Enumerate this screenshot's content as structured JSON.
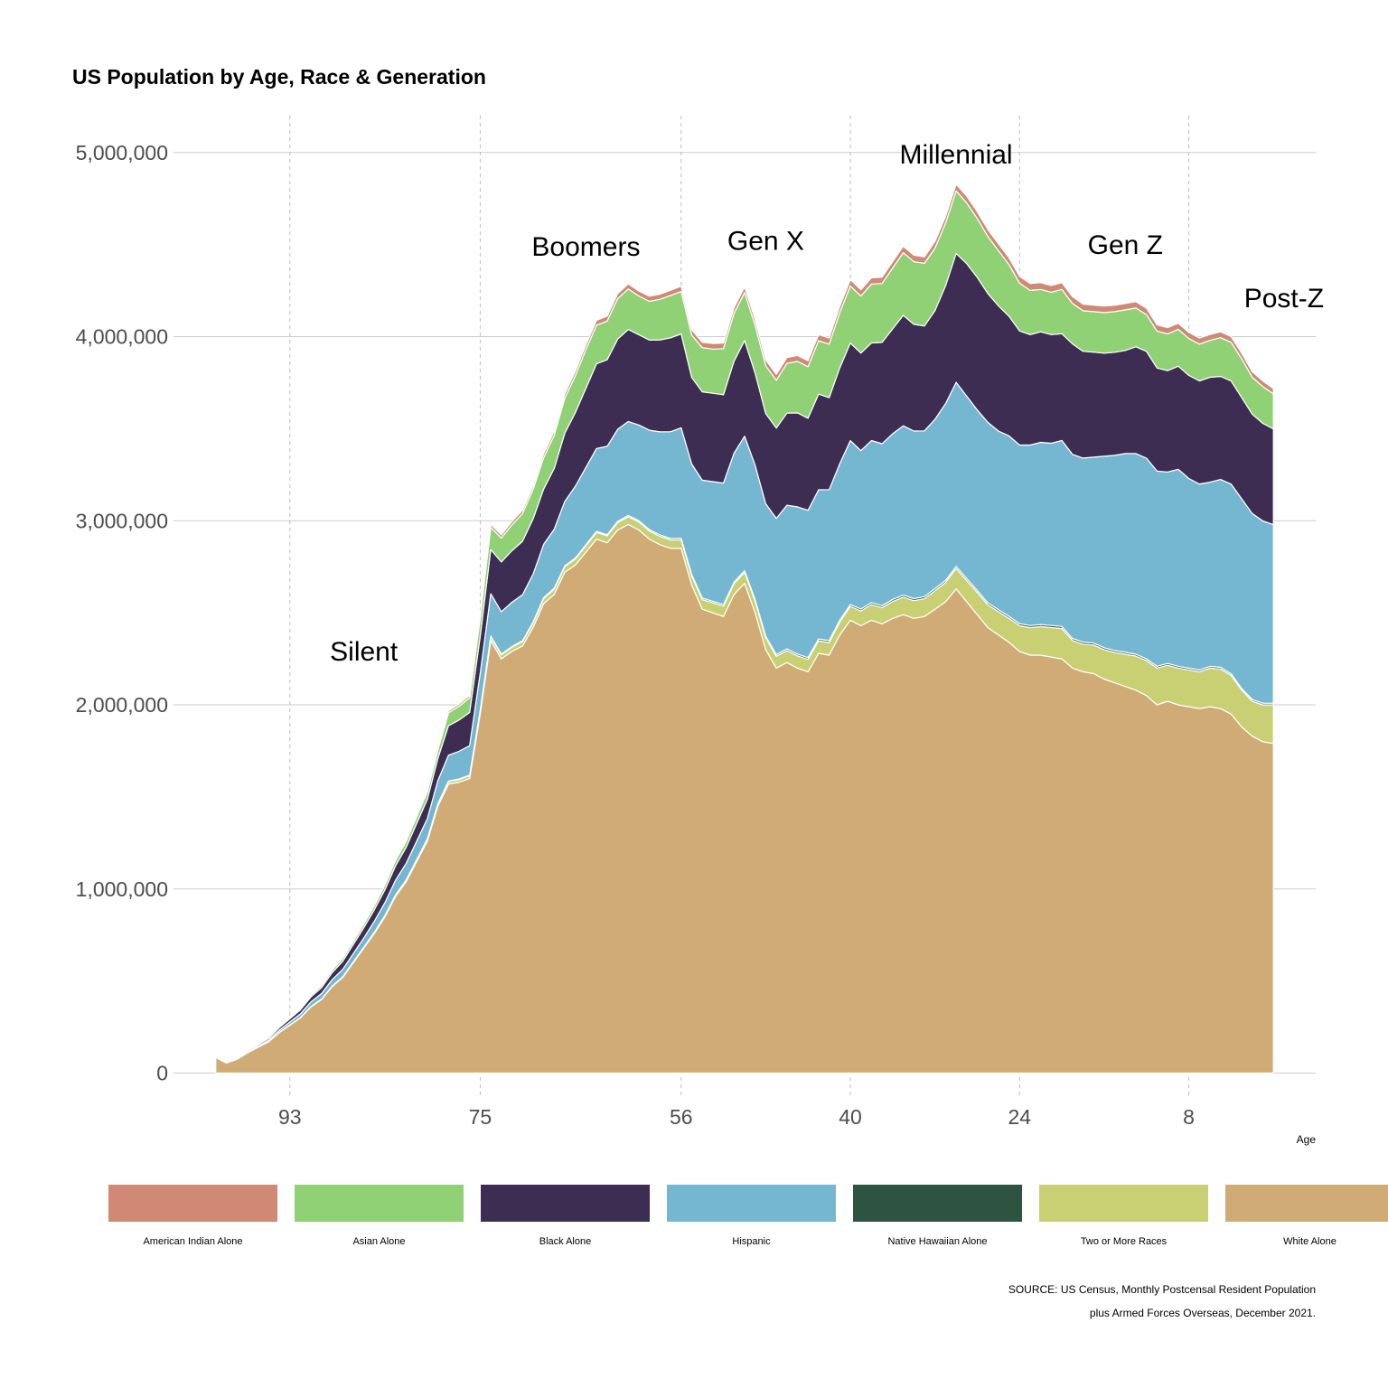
{
  "chart_data": {
    "type": "area",
    "stacked": true,
    "title": "US Population by Age, Race & Generation",
    "xlabel": "Age",
    "x_reversed": true,
    "xlim": [
      104,
      -4
    ],
    "ylim": [
      -120000,
      5200000
    ],
    "x_ticks": [
      93,
      75,
      56,
      40,
      24,
      8
    ],
    "y_ticks": [
      0,
      1000000,
      2000000,
      3000000,
      4000000,
      5000000
    ],
    "y_tick_labels": [
      "0",
      "1,000,000",
      "2,000,000",
      "3,000,000",
      "4,000,000",
      "5,000,000"
    ],
    "grid": {
      "horizontal": "solid",
      "vertical": "dashed"
    },
    "legend_position": "bottom",
    "x": [
      100,
      99,
      98,
      97,
      96,
      95,
      94,
      93,
      92,
      91,
      90,
      89,
      88,
      87,
      86,
      85,
      84,
      83,
      82,
      81,
      80,
      79,
      78,
      77,
      76,
      75,
      74,
      73,
      72,
      71,
      70,
      69,
      68,
      67,
      66,
      65,
      64,
      63,
      62,
      61,
      60,
      59,
      58,
      57,
      56,
      55,
      54,
      53,
      52,
      51,
      50,
      49,
      48,
      47,
      46,
      45,
      44,
      43,
      42,
      41,
      40,
      39,
      38,
      37,
      36,
      35,
      34,
      33,
      32,
      31,
      30,
      29,
      28,
      27,
      26,
      25,
      24,
      23,
      22,
      21,
      20,
      19,
      18,
      17,
      16,
      15,
      14,
      13,
      12,
      11,
      10,
      9,
      8,
      7,
      6,
      5,
      4,
      3,
      2,
      1,
      0
    ],
    "series": [
      {
        "name": "White Alone",
        "color": "#D0AB76",
        "values": [
          85000,
          55000,
          75000,
          110000,
          140000,
          170000,
          220000,
          260000,
          300000,
          360000,
          400000,
          470000,
          520000,
          600000,
          680000,
          760000,
          850000,
          960000,
          1040000,
          1150000,
          1260000,
          1450000,
          1570000,
          1580000,
          1600000,
          1950000,
          2350000,
          2250000,
          2290000,
          2320000,
          2420000,
          2550000,
          2600000,
          2720000,
          2760000,
          2830000,
          2900000,
          2880000,
          2950000,
          2980000,
          2950000,
          2900000,
          2870000,
          2850000,
          2850000,
          2650000,
          2520000,
          2500000,
          2480000,
          2600000,
          2660000,
          2500000,
          2300000,
          2200000,
          2230000,
          2200000,
          2180000,
          2280000,
          2270000,
          2380000,
          2460000,
          2430000,
          2460000,
          2440000,
          2470000,
          2490000,
          2470000,
          2480000,
          2520000,
          2560000,
          2630000,
          2560000,
          2490000,
          2420000,
          2380000,
          2340000,
          2290000,
          2270000,
          2270000,
          2260000,
          2250000,
          2200000,
          2180000,
          2170000,
          2140000,
          2120000,
          2100000,
          2080000,
          2050000,
          2000000,
          2020000,
          2000000,
          1990000,
          1980000,
          1990000,
          1980000,
          1950000,
          1880000,
          1830000,
          1800000,
          1790000
        ]
      },
      {
        "name": "Two or More Races",
        "color": "#C8D073",
        "values": [
          200,
          200,
          300,
          400,
          500,
          600,
          800,
          1000,
          1200,
          1500,
          2000,
          2500,
          3000,
          3500,
          4000,
          5000,
          6000,
          7000,
          8000,
          9000,
          10000,
          12000,
          14000,
          15000,
          16000,
          18000,
          20000,
          22000,
          23000,
          24000,
          25000,
          27000,
          29000,
          30000,
          32000,
          34000,
          36000,
          38000,
          40000,
          42000,
          43000,
          44000,
          45000,
          46000,
          47000,
          50000,
          52000,
          54000,
          56000,
          58000,
          60000,
          62000,
          63000,
          64000,
          65000,
          66000,
          67000,
          68000,
          69000,
          70000,
          75000,
          80000,
          85000,
          88000,
          92000,
          95000,
          96000,
          97000,
          100000,
          105000,
          110000,
          115000,
          120000,
          123000,
          126000,
          130000,
          140000,
          150000,
          155000,
          160000,
          165000,
          150000,
          150000,
          155000,
          160000,
          165000,
          175000,
          185000,
          190000,
          200000,
          195000,
          200000,
          200000,
          200000,
          210000,
          215000,
          210000,
          200000,
          190000,
          200000,
          210000
        ]
      },
      {
        "name": "Native Hawaiian Alone",
        "color": "#2C5440",
        "values": [
          100,
          100,
          100,
          100,
          200,
          200,
          300,
          300,
          400,
          500,
          600,
          700,
          800,
          900,
          1000,
          1200,
          1400,
          1600,
          1800,
          2000,
          2200,
          2400,
          2600,
          2800,
          3000,
          3400,
          4000,
          4000,
          4200,
          4400,
          4600,
          5000,
          5200,
          5500,
          5700,
          6000,
          6300,
          6500,
          6800,
          7000,
          7200,
          7400,
          7600,
          7800,
          8000,
          8000,
          8200,
          8400,
          8600,
          8800,
          9000,
          9000,
          9000,
          9200,
          9400,
          9600,
          9800,
          10000,
          10000,
          10200,
          10400,
          10500,
          10600,
          10700,
          10800,
          10900,
          11000,
          11000,
          11200,
          11400,
          11600,
          11500,
          11400,
          11300,
          11200,
          11100,
          11000,
          11000,
          11000,
          11000,
          11000,
          10800,
          10600,
          10500,
          10400,
          10300,
          10200,
          10000,
          10000,
          9900,
          9800,
          9700,
          9600,
          9500,
          9400,
          9300,
          9200,
          9100,
          9000,
          8900,
          8800
        ]
      },
      {
        "name": "Hispanic",
        "color": "#75B7D1",
        "values": [
          2000,
          2000,
          3000,
          4000,
          6000,
          8000,
          12000,
          16000,
          20000,
          25000,
          30000,
          35000,
          40000,
          45000,
          50000,
          60000,
          70000,
          80000,
          90000,
          100000,
          110000,
          125000,
          140000,
          150000,
          160000,
          200000,
          230000,
          230000,
          240000,
          250000,
          260000,
          290000,
          320000,
          350000,
          390000,
          420000,
          450000,
          480000,
          500000,
          510000,
          520000,
          540000,
          560000,
          580000,
          600000,
          600000,
          640000,
          650000,
          660000,
          700000,
          730000,
          730000,
          720000,
          740000,
          780000,
          800000,
          800000,
          810000,
          820000,
          850000,
          890000,
          860000,
          880000,
          880000,
          900000,
          920000,
          910000,
          900000,
          920000,
          960000,
          1000000,
          990000,
          980000,
          980000,
          970000,
          980000,
          970000,
          980000,
          990000,
          990000,
          1010000,
          1000000,
          1000000,
          1010000,
          1040000,
          1060000,
          1080000,
          1090000,
          1090000,
          1060000,
          1040000,
          1070000,
          1030000,
          1010000,
          1000000,
          1020000,
          1030000,
          1030000,
          1010000,
          990000,
          970000
        ]
      },
      {
        "name": "Black Alone",
        "color": "#3E2D53",
        "values": [
          3000,
          3000,
          4000,
          6000,
          8000,
          10000,
          14000,
          18000,
          22000,
          27000,
          32000,
          38000,
          44000,
          50000,
          56000,
          63000,
          70000,
          78000,
          87000,
          96000,
          105000,
          120000,
          160000,
          170000,
          180000,
          200000,
          240000,
          270000,
          280000,
          290000,
          300000,
          300000,
          330000,
          370000,
          400000,
          430000,
          460000,
          470000,
          490000,
          500000,
          490000,
          490000,
          500000,
          510000,
          510000,
          470000,
          480000,
          480000,
          480000,
          500000,
          520000,
          500000,
          490000,
          490000,
          500000,
          510000,
          500000,
          520000,
          500000,
          520000,
          530000,
          530000,
          530000,
          550000,
          570000,
          600000,
          580000,
          570000,
          590000,
          640000,
          700000,
          720000,
          720000,
          700000,
          680000,
          650000,
          620000,
          600000,
          600000,
          590000,
          580000,
          600000,
          580000,
          570000,
          560000,
          560000,
          560000,
          580000,
          580000,
          560000,
          550000,
          560000,
          560000,
          560000,
          570000,
          560000,
          560000,
          550000,
          540000,
          530000,
          520000
        ]
      },
      {
        "name": "Asian Alone",
        "color": "#8FD174",
        "values": [
          1000,
          1000,
          1500,
          2000,
          3000,
          4000,
          5000,
          6000,
          8000,
          10000,
          12000,
          14000,
          16000,
          18000,
          20000,
          23000,
          26000,
          29000,
          32000,
          36000,
          40000,
          45000,
          70000,
          75000,
          80000,
          100000,
          120000,
          130000,
          140000,
          150000,
          160000,
          170000,
          180000,
          190000,
          200000,
          210000,
          210000,
          210000,
          220000,
          220000,
          210000,
          210000,
          220000,
          230000,
          230000,
          230000,
          240000,
          240000,
          250000,
          260000,
          260000,
          260000,
          260000,
          260000,
          270000,
          280000,
          280000,
          290000,
          290000,
          300000,
          310000,
          310000,
          320000,
          320000,
          330000,
          340000,
          340000,
          340000,
          340000,
          340000,
          340000,
          330000,
          320000,
          310000,
          300000,
          280000,
          260000,
          240000,
          230000,
          230000,
          240000,
          220000,
          220000,
          220000,
          220000,
          220000,
          220000,
          210000,
          200000,
          200000,
          200000,
          200000,
          200000,
          200000,
          200000,
          210000,
          210000,
          210000,
          200000,
          200000,
          190000
        ]
      },
      {
        "name": "American Indian Alone",
        "color": "#D08975",
        "values": [
          200,
          200,
          300,
          400,
          600,
          800,
          1000,
          1300,
          1600,
          2000,
          2500,
          3000,
          3500,
          4000,
          4500,
          5000,
          5500,
          6000,
          7000,
          8000,
          9000,
          10000,
          11000,
          12000,
          13000,
          14000,
          16000,
          17000,
          18000,
          19000,
          20000,
          21000,
          22000,
          23000,
          24000,
          25000,
          26000,
          26000,
          27000,
          27000,
          27000,
          28000,
          28000,
          28000,
          29000,
          29000,
          29000,
          30000,
          30000,
          30000,
          31000,
          31000,
          31000,
          31000,
          32000,
          32000,
          32000,
          33000,
          33000,
          33000,
          34000,
          34000,
          34000,
          34000,
          35000,
          35000,
          35000,
          35000,
          36000,
          36000,
          36000,
          36000,
          37000,
          37000,
          37000,
          37000,
          37000,
          37000,
          37000,
          37000,
          37000,
          36000,
          36000,
          36000,
          36000,
          35000,
          35000,
          35000,
          34000,
          34000,
          34000,
          33000,
          33000,
          33000,
          32000,
          32000,
          31000,
          31000,
          30000,
          30000,
          29000
        ]
      }
    ],
    "annotations": [
      {
        "text": "Silent",
        "x": 86,
        "y": 2240000
      },
      {
        "text": "Boomers",
        "x": 65,
        "y": 4440000
      },
      {
        "text": "Gen X",
        "x": 48,
        "y": 4470000
      },
      {
        "text": "Millennial",
        "x": 30,
        "y": 4940000
      },
      {
        "text": "Gen Z",
        "x": 14,
        "y": 4450000
      },
      {
        "text": "Post-Z",
        "x": -1,
        "y": 4160000
      }
    ],
    "legend_order": [
      "American Indian Alone",
      "Asian Alone",
      "Black Alone",
      "Hispanic",
      "Native Hawaiian Alone",
      "Two or More Races",
      "White Alone"
    ],
    "source": [
      "SOURCE: US Census, Monthly Postcensal Resident Population",
      "plus Armed Forces Overseas, December 2021."
    ]
  }
}
